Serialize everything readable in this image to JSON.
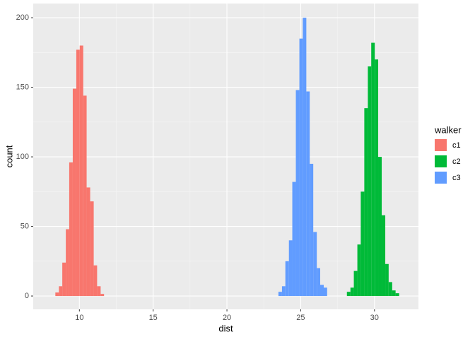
{
  "chart_data": {
    "type": "histogram",
    "x_label": "dist",
    "y_label": "count",
    "legend_title": "walker",
    "legend_position": "right",
    "grid": true,
    "xlim": [
      6.87,
      32.98
    ],
    "ylim": [
      -9.6,
      210.2
    ],
    "xticks": [
      10,
      15,
      20,
      25,
      30
    ],
    "yticks": [
      0,
      50,
      100,
      150,
      200
    ],
    "series": [
      {
        "name": "c1",
        "color": "#F8766D",
        "bins": [
          8.37,
          8.61,
          8.84,
          9.08,
          9.31,
          9.55,
          9.79,
          10.02,
          10.26,
          10.49,
          10.73,
          10.97,
          11.2,
          11.44,
          11.67
        ],
        "values": [
          2.5,
          7,
          24,
          48,
          96,
          149,
          177,
          180,
          144,
          78,
          68,
          22,
          7,
          1.5
        ]
      },
      {
        "name": "c2",
        "color": "#00BA38",
        "bins": [
          28.13,
          28.37,
          28.6,
          28.84,
          29.07,
          29.31,
          29.55,
          29.78,
          30.02,
          30.25,
          30.49,
          30.73,
          30.96,
          31.2,
          31.43,
          31.67
        ],
        "values": [
          3,
          6,
          18,
          37,
          75,
          135,
          165,
          182,
          170,
          100,
          58,
          23,
          10,
          4,
          2
        ]
      },
      {
        "name": "c3",
        "color": "#619CFF",
        "bins": [
          23.49,
          23.73,
          23.96,
          24.2,
          24.43,
          24.67,
          24.91,
          25.14,
          25.38,
          25.61,
          25.85,
          26.09,
          26.32,
          26.56,
          26.79
        ],
        "values": [
          3,
          7,
          25,
          40,
          82,
          148,
          185,
          200,
          147,
          95,
          46,
          20,
          8,
          6
        ]
      }
    ]
  }
}
